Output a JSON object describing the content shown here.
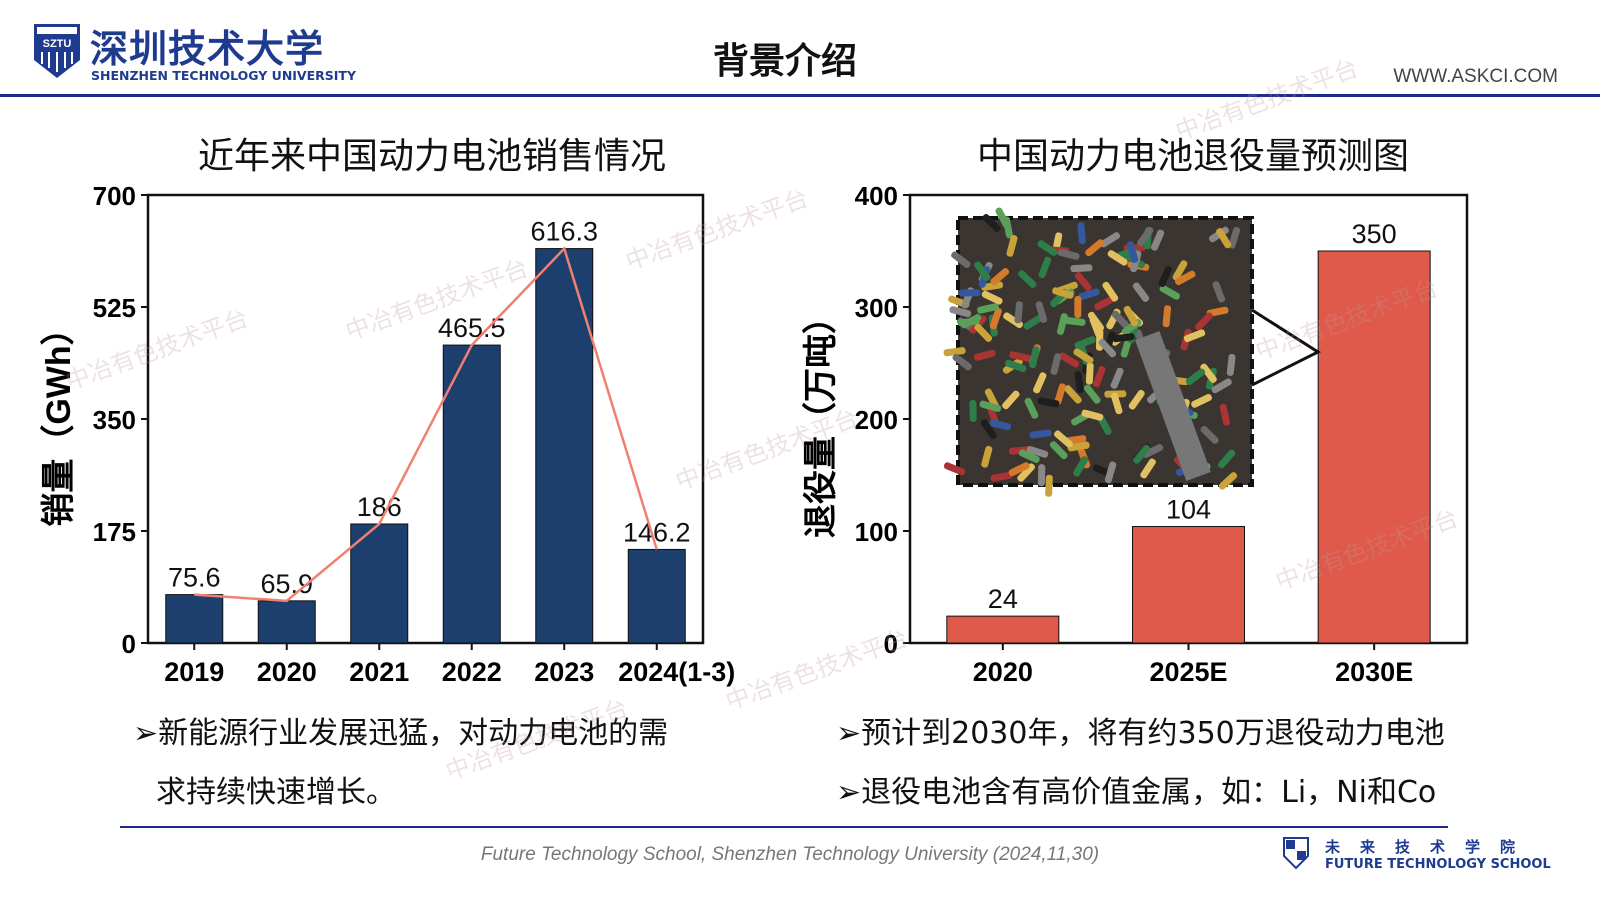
{
  "header": {
    "logo_cn": "深圳技术大学",
    "logo_en": "SHENZHEN TECHNOLOGY UNIVERSITY",
    "logo_badge": "SZTU",
    "title": "背景介绍",
    "site": "WWW.ASKCI.COM"
  },
  "watermark": "中冶有色技术平台",
  "chart_data": [
    {
      "type": "bar",
      "title": "近年来中国动力电池销售情况",
      "ylabel": "销量（GWh）",
      "xlabel": "",
      "categories": [
        "2019",
        "2020",
        "2021",
        "2022",
        "2023",
        "2024(1-3)"
      ],
      "values": [
        75.6,
        65.9,
        186,
        465.5,
        616.3,
        146.2
      ],
      "data_labels": [
        "75.6",
        "65.9",
        "186",
        "465.5",
        "616.3",
        "146.2"
      ],
      "ylim": [
        0,
        700
      ],
      "yticks": [
        "0",
        "175",
        "350",
        "525",
        "700"
      ],
      "bar_color": "#1c3f6e",
      "line_color": "#f08070",
      "overlay_line": true,
      "grid": false
    },
    {
      "type": "bar",
      "title": "中国动力电池退役量预测图",
      "ylabel": "退役量（万吨）",
      "xlabel": "",
      "categories": [
        "2020",
        "2025E",
        "2030E"
      ],
      "values": [
        24,
        104,
        350
      ],
      "data_labels": [
        "24",
        "104",
        "350"
      ],
      "ylim": [
        0,
        400
      ],
      "yticks": [
        "0",
        "100",
        "200",
        "300",
        "400"
      ],
      "bar_color": "#e05a4b",
      "grid": false,
      "inset_image": "waste-batteries-photo"
    }
  ],
  "bullets_left": [
    "➢新能源行业发展迅猛，对动力电池的需",
    "求持续快速增长。"
  ],
  "bullets_right": [
    "➢预计到2030年，将有约350万退役动力电池",
    "➢退役电池含有高价值金属，如：Li，Ni和Co"
  ],
  "footer": {
    "text": "Future Technology School, Shenzhen Technology University (2024,11,30)",
    "school_cn": "未来技术学院",
    "school_en": "FUTURE TECHNOLOGY SCHOOL"
  }
}
